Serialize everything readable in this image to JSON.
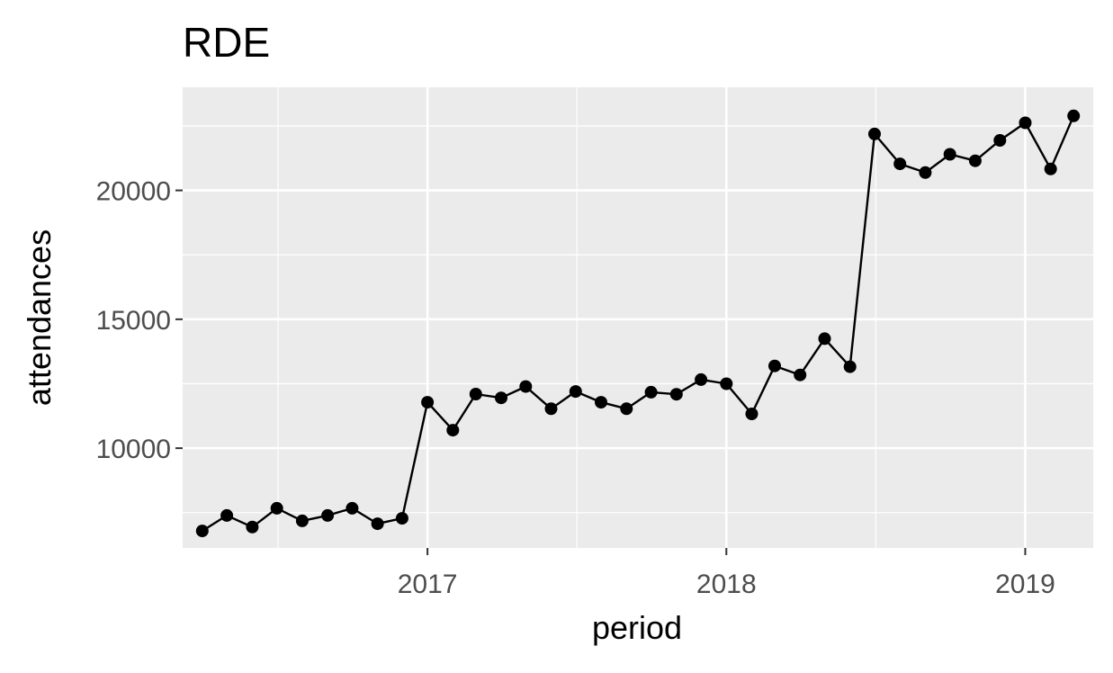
{
  "chart_data": {
    "type": "line",
    "title": "RDE",
    "xlabel": "period",
    "ylabel": "attendances",
    "x_type": "date",
    "xlim": [
      "2016-03-08",
      "2019-03-25"
    ],
    "ylim": [
      6130,
      24000
    ],
    "x_ticks": [
      {
        "date": "2017-01-01",
        "label": "2017"
      },
      {
        "date": "2018-01-01",
        "label": "2018"
      },
      {
        "date": "2019-01-01",
        "label": "2019"
      }
    ],
    "y_ticks": [
      10000,
      15000,
      20000
    ],
    "grid": true,
    "markers": true,
    "series": [
      {
        "x": [
          "2016-04-01",
          "2016-05-01",
          "2016-06-01",
          "2016-07-01",
          "2016-08-01",
          "2016-09-01",
          "2016-10-01",
          "2016-11-01",
          "2016-12-01",
          "2017-01-01",
          "2017-02-01",
          "2017-03-01",
          "2017-04-01",
          "2017-05-01",
          "2017-06-01",
          "2017-07-01",
          "2017-08-01",
          "2017-09-01",
          "2017-10-01",
          "2017-11-01",
          "2017-12-01",
          "2018-01-01",
          "2018-02-01",
          "2018-03-01",
          "2018-04-01",
          "2018-05-01",
          "2018-06-01",
          "2018-07-01",
          "2018-08-01",
          "2018-09-01",
          "2018-10-01",
          "2018-11-01",
          "2018-12-01",
          "2019-01-01",
          "2019-02-01",
          "2019-03-01"
        ],
        "y": [
          6790,
          7390,
          6940,
          7670,
          7180,
          7390,
          7670,
          7070,
          7280,
          11780,
          10700,
          12100,
          11950,
          12390,
          11530,
          12200,
          11780,
          11530,
          12170,
          12090,
          12660,
          12500,
          11330,
          13190,
          12840,
          14250,
          13160,
          22190,
          21030,
          20690,
          21400,
          21150,
          21940,
          22620,
          20830,
          22890
        ]
      }
    ]
  }
}
